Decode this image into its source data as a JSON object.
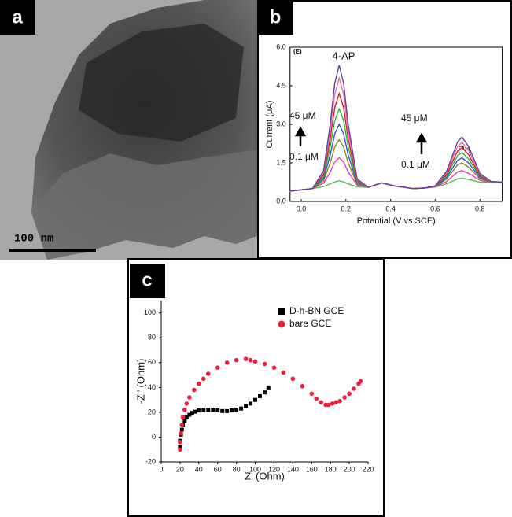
{
  "panels": {
    "a": {
      "label": "a",
      "scale_bar": "100 nm"
    },
    "b": {
      "label": "b"
    },
    "c": {
      "label": "c"
    }
  },
  "chart_data": [
    {
      "type": "line",
      "annotations": [
        "(E)",
        "4-AP",
        "45 μM",
        "0.1 μM",
        "45 μM",
        "Ph",
        "0.1 μM"
      ],
      "x_label": "Potential (V vs SCE)",
      "y_label": "Current (μA)",
      "xlim": [
        -0.05,
        0.9
      ],
      "ylim": [
        0,
        6
      ],
      "xticks": [
        {
          "value": 0,
          "label": "0.0"
        },
        0.2,
        0.4,
        0.6,
        0.8
      ],
      "yticks": [
        {
          "value": 0,
          "label": "0.0"
        },
        1.5,
        {
          "value": 3,
          "label": "3.0"
        },
        4.5,
        {
          "value": 6,
          "label": "6.0"
        }
      ],
      "x": [
        -0.05,
        0,
        0.05,
        0.1,
        0.13,
        0.15,
        0.17,
        0.19,
        0.21,
        0.25,
        0.3,
        0.36,
        0.42,
        0.5,
        0.55,
        0.6,
        0.65,
        0.7,
        0.72,
        0.75,
        0.8,
        0.85,
        0.9
      ],
      "series": [
        {
          "color": "#55b848",
          "values": [
            0.4,
            0.45,
            0.5,
            0.58,
            0.68,
            0.76,
            0.8,
            0.76,
            0.68,
            0.57,
            0.55,
            0.72,
            0.6,
            0.5,
            0.52,
            0.56,
            0.68,
            0.88,
            0.9,
            0.85,
            0.75,
            0.75,
            0.75
          ]
        },
        {
          "color": "#e040c0",
          "values": [
            0.4,
            0.45,
            0.5,
            0.71,
            1.15,
            1.53,
            1.7,
            1.53,
            1.15,
            0.63,
            0.55,
            0.72,
            0.6,
            0.5,
            0.52,
            0.57,
            0.77,
            1.15,
            1.2,
            1.09,
            0.82,
            0.76,
            0.75
          ]
        },
        {
          "color": "#8a8a20",
          "values": [
            0.4,
            0.45,
            0.5,
            0.8,
            1.51,
            2.12,
            2.4,
            2.12,
            1.51,
            0.68,
            0.55,
            0.72,
            0.6,
            0.5,
            0.52,
            0.58,
            0.86,
            1.42,
            1.5,
            1.33,
            0.88,
            0.76,
            0.75
          ]
        },
        {
          "color": "#3050d0",
          "values": [
            0.4,
            0.45,
            0.5,
            0.88,
            1.82,
            2.63,
            3.0,
            2.63,
            1.82,
            0.72,
            0.55,
            0.72,
            0.6,
            0.5,
            0.52,
            0.58,
            0.92,
            1.6,
            1.7,
            1.49,
            0.92,
            0.77,
            0.75
          ]
        },
        {
          "color": "#30b030",
          "values": [
            0.4,
            0.45,
            0.5,
            0.96,
            2.14,
            3.14,
            3.6,
            3.14,
            2.14,
            0.76,
            0.55,
            0.72,
            0.6,
            0.5,
            0.52,
            0.59,
            0.98,
            1.78,
            1.9,
            1.65,
            0.96,
            0.77,
            0.75
          ]
        },
        {
          "color": "#d02030",
          "values": [
            0.4,
            0.45,
            0.5,
            1.04,
            2.45,
            3.65,
            4.2,
            3.65,
            2.45,
            0.81,
            0.55,
            0.72,
            0.6,
            0.5,
            0.52,
            0.59,
            1.04,
            1.96,
            2.1,
            1.81,
            1.0,
            0.77,
            0.75
          ]
        },
        {
          "color": "#f070a0",
          "values": [
            0.4,
            0.45,
            0.5,
            1.12,
            2.76,
            4.16,
            4.8,
            4.16,
            2.76,
            0.85,
            0.55,
            0.72,
            0.6,
            0.5,
            0.52,
            0.6,
            1.1,
            2.14,
            2.3,
            1.97,
            1.05,
            0.77,
            0.75
          ]
        },
        {
          "color": "#6040a0",
          "values": [
            0.4,
            0.45,
            0.5,
            1.19,
            3.02,
            4.59,
            5.3,
            4.59,
            3.02,
            0.88,
            0.55,
            0.72,
            0.6,
            0.5,
            0.52,
            0.61,
            1.16,
            2.32,
            2.5,
            2.13,
            1.09,
            0.78,
            0.75
          ]
        }
      ]
    },
    {
      "type": "scatter",
      "x_label": "Z’ (Ohm)",
      "y_label": "-Z’’ (Ohm)",
      "xlim": [
        0,
        220
      ],
      "ylim": [
        -20,
        110
      ],
      "xticks": [
        0,
        20,
        40,
        60,
        80,
        100,
        120,
        140,
        160,
        180,
        200,
        220
      ],
      "yticks": [
        -20,
        0,
        20,
        40,
        60,
        80,
        100
      ],
      "legend": "top-right",
      "series": [
        {
          "name": "D-h-BN GCE",
          "color": "#000000",
          "marker": "square",
          "x": [
            20,
            20,
            21,
            22,
            23,
            25,
            27,
            30,
            33,
            36,
            40,
            45,
            50,
            55,
            60,
            65,
            70,
            75,
            80,
            85,
            90,
            95,
            100,
            105,
            110,
            114
          ],
          "values": [
            -8,
            -3,
            2,
            6,
            10,
            13,
            16,
            18,
            19.5,
            20.5,
            21.5,
            22,
            22,
            22,
            21.5,
            21,
            21,
            21.5,
            22,
            23,
            25,
            27,
            30,
            33,
            36,
            40
          ]
        },
        {
          "name": "bare GCE",
          "color": "#e8203c",
          "marker": "circle",
          "x": [
            20,
            20,
            21,
            22,
            23,
            25,
            27,
            30,
            35,
            40,
            45,
            50,
            60,
            70,
            80,
            90,
            95,
            100,
            110,
            120,
            130,
            140,
            150,
            160,
            165,
            170,
            175,
            178,
            182,
            186,
            190,
            195,
            200,
            205,
            210,
            212
          ],
          "values": [
            -10,
            -4,
            3,
            10,
            16,
            22,
            27,
            32,
            38,
            43,
            47,
            51,
            56,
            60,
            62,
            63,
            62,
            61,
            59,
            56,
            52,
            47,
            41,
            35,
            31,
            28,
            26,
            26,
            27,
            28,
            29,
            32,
            35,
            39,
            43,
            45
          ]
        }
      ]
    }
  ]
}
